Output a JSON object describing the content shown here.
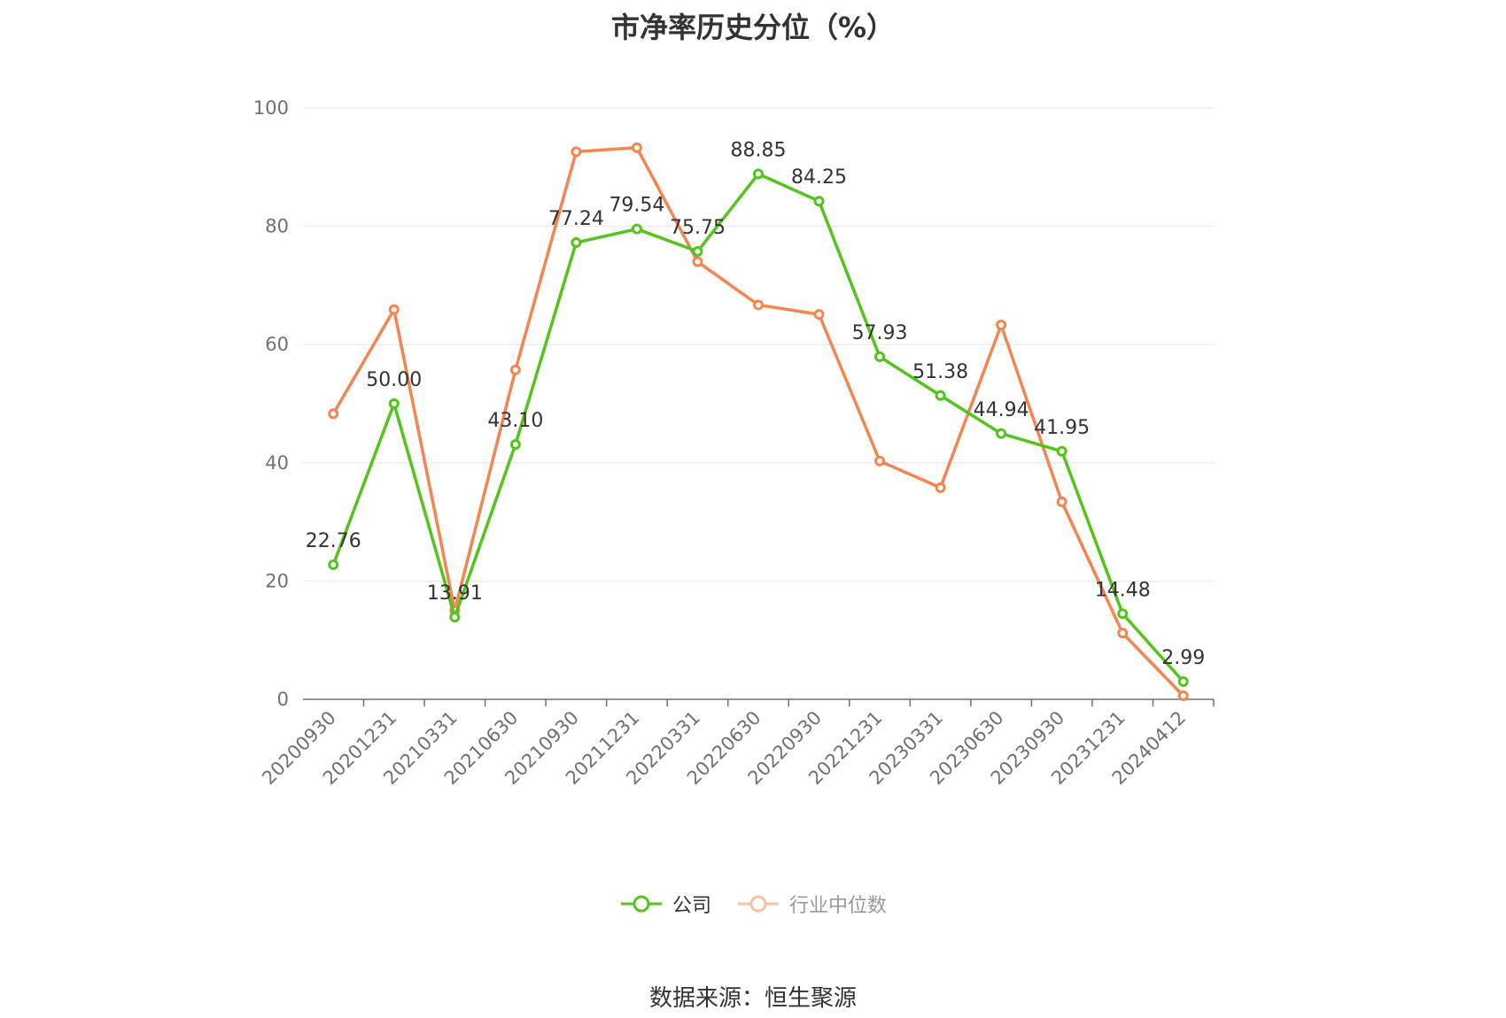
{
  "title": "市净率历史分位（%）",
  "source": "数据来源：恒生聚源",
  "chart_data": {
    "type": "line",
    "categories": [
      "20200930",
      "20201231",
      "20210331",
      "20210630",
      "20210930",
      "20211231",
      "20220331",
      "20220630",
      "20220930",
      "20221231",
      "20230331",
      "20230630",
      "20230930",
      "20231231",
      "20240412"
    ],
    "ylim": [
      0,
      100
    ],
    "yticks": [
      0,
      20,
      40,
      60,
      80,
      100
    ],
    "grid": true,
    "legend_position": "bottom",
    "series": [
      {
        "name": "公司",
        "color": "#52c41a",
        "values": [
          22.76,
          50.0,
          13.91,
          43.1,
          77.24,
          79.54,
          75.75,
          88.85,
          84.25,
          57.93,
          51.38,
          44.94,
          41.95,
          14.48,
          2.99
        ],
        "labels": [
          "22.76",
          "50.00",
          "13.91",
          "43.10",
          "77.24",
          "79.54",
          "75.75",
          "88.85",
          "84.25",
          "57.93",
          "51.38",
          "44.94",
          "41.95",
          "14.48",
          "2.99"
        ]
      },
      {
        "name": "行业中位数",
        "color": "#f5854f",
        "values": [
          48.3,
          65.9,
          15.0,
          55.7,
          92.6,
          93.3,
          74.0,
          66.7,
          65.1,
          40.3,
          35.8,
          63.3,
          33.4,
          11.2,
          0.6
        ]
      }
    ]
  }
}
